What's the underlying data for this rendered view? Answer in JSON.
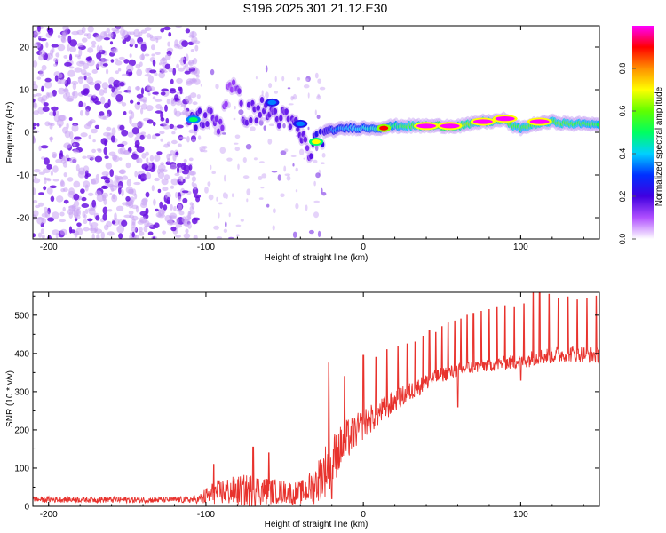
{
  "title": "S196.2025.301.21.12.E30",
  "chart_data": [
    {
      "type": "heatmap",
      "name": "spectrogram",
      "xlabel": "Height of straight line (km)",
      "ylabel": "Frequency (Hz)",
      "xlim": [
        -210,
        150
      ],
      "ylim": [
        -25,
        25
      ],
      "xticks": [
        -200,
        -100,
        0,
        100
      ],
      "yticks": [
        -20,
        -10,
        0,
        10,
        20
      ],
      "noise_region": {
        "x": [
          -210,
          -105
        ],
        "y": [
          -25,
          25
        ],
        "relative_amplitude": 0.05
      },
      "sparse_region": {
        "x": [
          -105,
          -25
        ],
        "y": [
          -25,
          15
        ],
        "relative_amplitude": 0.08
      },
      "ridge": [
        {
          "x": -110,
          "f": 3.0,
          "a": 0.35
        },
        {
          "x": -100,
          "f": 3.5,
          "a": 0.3
        },
        {
          "x": -90,
          "f": 2.0,
          "a": 0.25
        },
        {
          "x": -85,
          "f": 12.8,
          "a": 0.2
        },
        {
          "x": -75,
          "f": 4.0,
          "a": 0.3
        },
        {
          "x": -65,
          "f": 5.5,
          "a": 0.3
        },
        {
          "x": -55,
          "f": 4.0,
          "a": 0.3
        },
        {
          "x": -48,
          "f": 2.5,
          "a": 0.3
        },
        {
          "x": -42,
          "f": 1.0,
          "a": 0.3
        },
        {
          "x": -38,
          "f": -2.0,
          "a": 0.3
        },
        {
          "x": -35,
          "f": -5.0,
          "a": 0.25
        },
        {
          "x": -30,
          "f": -2.0,
          "a": 0.45
        },
        {
          "x": -25,
          "f": 0.0,
          "a": 0.4
        },
        {
          "x": -20,
          "f": 0.5,
          "a": 0.45
        },
        {
          "x": -10,
          "f": 1.0,
          "a": 0.5
        },
        {
          "x": 0,
          "f": 1.0,
          "a": 0.55
        },
        {
          "x": 10,
          "f": 1.0,
          "a": 0.6
        },
        {
          "x": 20,
          "f": 1.5,
          "a": 0.65
        },
        {
          "x": 30,
          "f": 1.5,
          "a": 0.75
        },
        {
          "x": 40,
          "f": 1.5,
          "a": 0.9
        },
        {
          "x": 50,
          "f": 1.5,
          "a": 0.95
        },
        {
          "x": 60,
          "f": 1.5,
          "a": 0.85
        },
        {
          "x": 70,
          "f": 2.0,
          "a": 0.8
        },
        {
          "x": 75,
          "f": 2.5,
          "a": 0.75
        },
        {
          "x": 80,
          "f": 2.5,
          "a": 0.8
        },
        {
          "x": 90,
          "f": 3.0,
          "a": 0.85
        },
        {
          "x": 95,
          "f": 1.5,
          "a": 0.75
        },
        {
          "x": 100,
          "f": 1.0,
          "a": 0.7
        },
        {
          "x": 105,
          "f": 1.5,
          "a": 0.75
        },
        {
          "x": 110,
          "f": 2.0,
          "a": 0.8
        },
        {
          "x": 120,
          "f": 2.5,
          "a": 0.75
        },
        {
          "x": 130,
          "f": 2.0,
          "a": 0.75
        },
        {
          "x": 140,
          "f": 2.0,
          "a": 0.7
        },
        {
          "x": 150,
          "f": 2.0,
          "a": 0.7
        }
      ],
      "peaks": [
        {
          "x": -108,
          "f": 3.0,
          "a": 0.5
        },
        {
          "x": -58,
          "f": 7.0,
          "a": 0.35
        },
        {
          "x": -40,
          "f": 2.0,
          "a": 0.35
        },
        {
          "x": -30,
          "f": -2.2,
          "a": 0.7
        },
        {
          "x": 40,
          "f": 1.5,
          "a": 1.0
        },
        {
          "x": 55,
          "f": 1.5,
          "a": 1.0
        },
        {
          "x": 76,
          "f": 2.5,
          "a": 1.0
        },
        {
          "x": 90,
          "f": 3.2,
          "a": 1.0
        },
        {
          "x": 112,
          "f": 2.5,
          "a": 1.0
        },
        {
          "x": 13,
          "f": 1.0,
          "a": 0.9
        }
      ],
      "colorbar": {
        "label": "Normalized spectral amplitude",
        "range": [
          0,
          1
        ],
        "ticks": [
          "0.0",
          "0.2",
          "0.4",
          "0.6",
          "0.8"
        ],
        "tick_values": [
          0.0,
          0.2,
          0.4,
          0.6,
          0.8
        ],
        "colormap": [
          "#ffffff",
          "#b050ff",
          "#4000e0",
          "#0030ff",
          "#00d0ff",
          "#00ff60",
          "#60ff00",
          "#ffff00",
          "#ff9000",
          "#ff0000",
          "#ff00ff"
        ]
      }
    },
    {
      "type": "line",
      "name": "snr",
      "xlabel": "Height of straight line (km)",
      "ylabel": "SNR (10 * v/v)",
      "xlim": [
        -210,
        150
      ],
      "ylim": [
        0,
        560
      ],
      "xticks": [
        -200,
        -100,
        0,
        100
      ],
      "yticks": [
        0,
        100,
        200,
        300,
        400,
        500
      ],
      "color": "#e8322d",
      "series": [
        {
          "name": "SNR",
          "x": [
            -210,
            -180,
            -150,
            -120,
            -105,
            -100,
            -95,
            -90,
            -80,
            -70,
            -60,
            -50,
            -40,
            -35,
            -30,
            -25,
            -20,
            -15,
            -10,
            -5,
            0,
            10,
            20,
            30,
            40,
            50,
            60,
            70,
            80,
            90,
            100,
            110,
            120,
            130,
            140,
            150
          ],
          "baseline": [
            18,
            18,
            17,
            17,
            18,
            25,
            35,
            38,
            40,
            42,
            40,
            38,
            35,
            45,
            60,
            90,
            120,
            150,
            175,
            195,
            215,
            245,
            275,
            300,
            325,
            345,
            355,
            365,
            370,
            375,
            380,
            390,
            395,
            400,
            398,
            395
          ],
          "spread": [
            8,
            8,
            8,
            8,
            10,
            25,
            30,
            35,
            40,
            45,
            35,
            30,
            30,
            40,
            55,
            70,
            70,
            60,
            55,
            45,
            40,
            35,
            30,
            25,
            22,
            20,
            18,
            18,
            18,
            18,
            20,
            22,
            22,
            22,
            22,
            22
          ]
        }
      ],
      "spikes": [
        {
          "x": -95,
          "y": 110
        },
        {
          "x": -70,
          "y": 155
        },
        {
          "x": -60,
          "y": 140
        },
        {
          "x": -22,
          "y": 375
        },
        {
          "x": -12,
          "y": 340
        },
        {
          "x": 0,
          "y": 395
        },
        {
          "x": 8,
          "y": 390
        },
        {
          "x": 15,
          "y": 410
        },
        {
          "x": 22,
          "y": 418
        },
        {
          "x": 28,
          "y": 425
        },
        {
          "x": 33,
          "y": 430
        },
        {
          "x": 38,
          "y": 445
        },
        {
          "x": 42,
          "y": 460
        },
        {
          "x": 46,
          "y": 455
        },
        {
          "x": 50,
          "y": 470
        },
        {
          "x": 54,
          "y": 480
        },
        {
          "x": 58,
          "y": 485
        },
        {
          "x": 62,
          "y": 490
        },
        {
          "x": 66,
          "y": 500
        },
        {
          "x": 70,
          "y": 505
        },
        {
          "x": 75,
          "y": 510
        },
        {
          "x": 80,
          "y": 515
        },
        {
          "x": 85,
          "y": 520
        },
        {
          "x": 90,
          "y": 525
        },
        {
          "x": 96,
          "y": 520
        },
        {
          "x": 102,
          "y": 530
        },
        {
          "x": 108,
          "y": 560
        },
        {
          "x": 112,
          "y": 558
        },
        {
          "x": 118,
          "y": 555
        },
        {
          "x": 124,
          "y": 545
        },
        {
          "x": 130,
          "y": 548
        },
        {
          "x": 136,
          "y": 540
        },
        {
          "x": 142,
          "y": 545
        },
        {
          "x": 148,
          "y": 550
        }
      ],
      "dips": [
        {
          "x": -45,
          "y": 5
        },
        {
          "x": -20,
          "y": 20
        },
        {
          "x": 60,
          "y": 260
        },
        {
          "x": 100,
          "y": 330
        }
      ]
    }
  ]
}
